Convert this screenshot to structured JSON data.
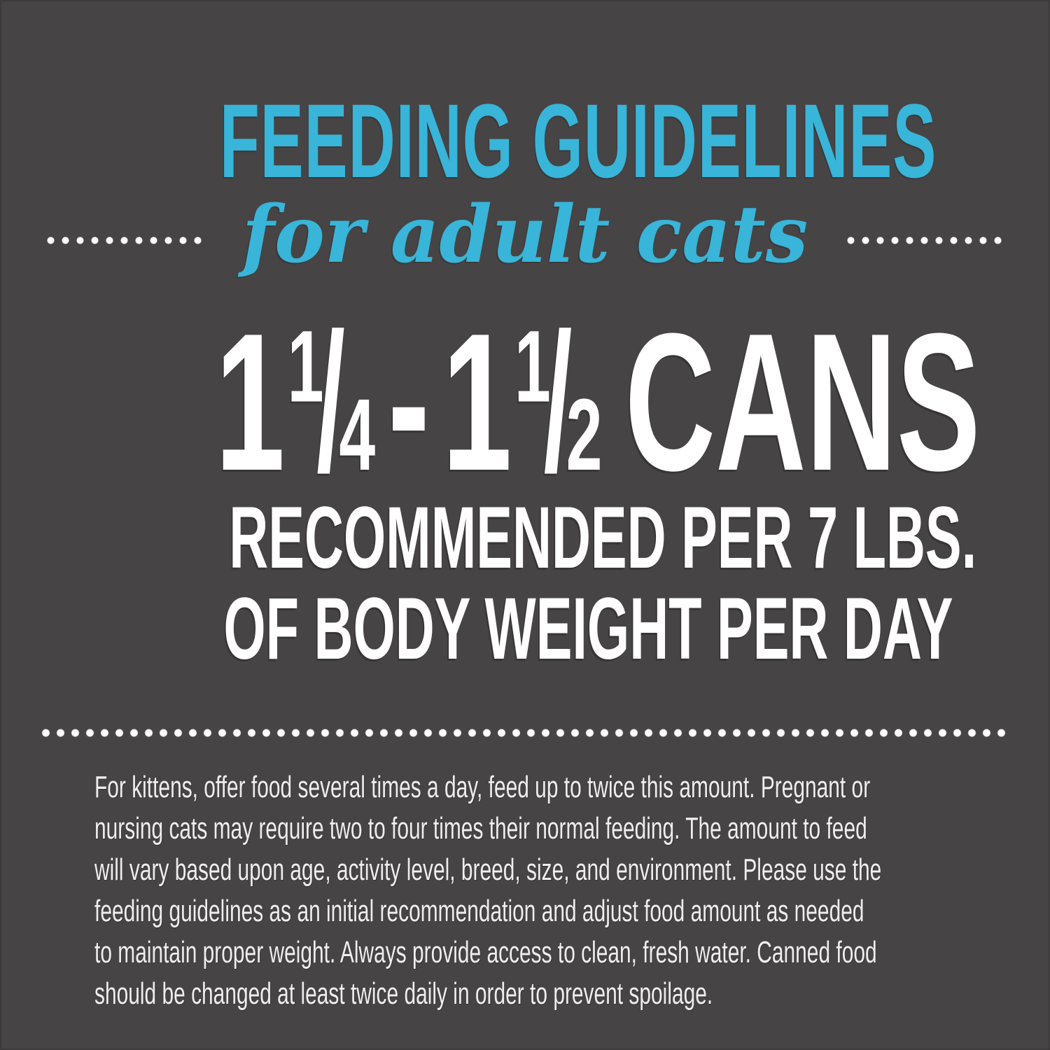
{
  "colors": {
    "background": "#474445",
    "accent_teal": "#38b5d8",
    "heading_white": "#ffffff",
    "body_text": "#efeeee"
  },
  "header": {
    "title": "FEEDING GUIDELINES",
    "subtitle": "for adult cats"
  },
  "serving": {
    "whole1": "1",
    "num1": "1",
    "slash": "/",
    "den1": "4",
    "separator": "-",
    "whole2": "1",
    "num2": "1",
    "den2": "2",
    "unit": "CANS",
    "detail_line1": "RECOMMENDED PER 7 LBS.",
    "detail_line2": "OF BODY WEIGHT PER DAY"
  },
  "notes": {
    "lines": [
      "For kittens, offer food several times a day, feed up to twice this amount. Pregnant or",
      "nursing cats may require two to four times their normal feeding. The amount to feed",
      "will vary based upon age, activity level, breed, size, and environment. Please use the",
      "feeding guidelines as an initial recommendation and adjust food amount as needed",
      "to maintain proper weight. Always provide access to clean, fresh water. Canned food",
      "should be changed at least twice daily in order to prevent spoilage."
    ]
  }
}
